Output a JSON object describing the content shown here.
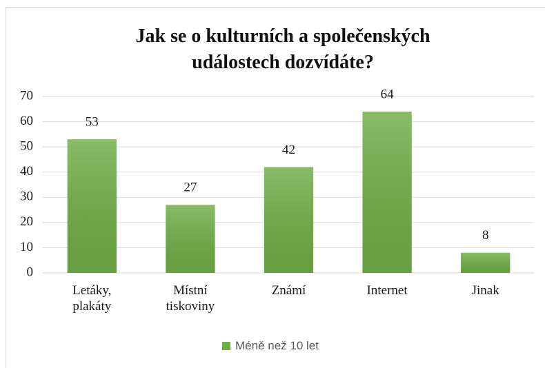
{
  "chart_data": {
    "type": "bar",
    "title": "Jak se o kulturních a společenských událostech dozvídáte?",
    "categories": [
      "Letáky, plakáty",
      "Místní tiskoviny",
      "Známí",
      "Internet",
      "Jinak"
    ],
    "series": [
      {
        "name": "Méně než 10 let",
        "color": "#70ad47",
        "values": [
          53,
          27,
          42,
          64,
          8
        ]
      }
    ],
    "ylim": [
      0,
      70
    ],
    "yticks": [
      0,
      10,
      20,
      30,
      40,
      50,
      60,
      70
    ],
    "grid": true,
    "legend": "bottom"
  }
}
